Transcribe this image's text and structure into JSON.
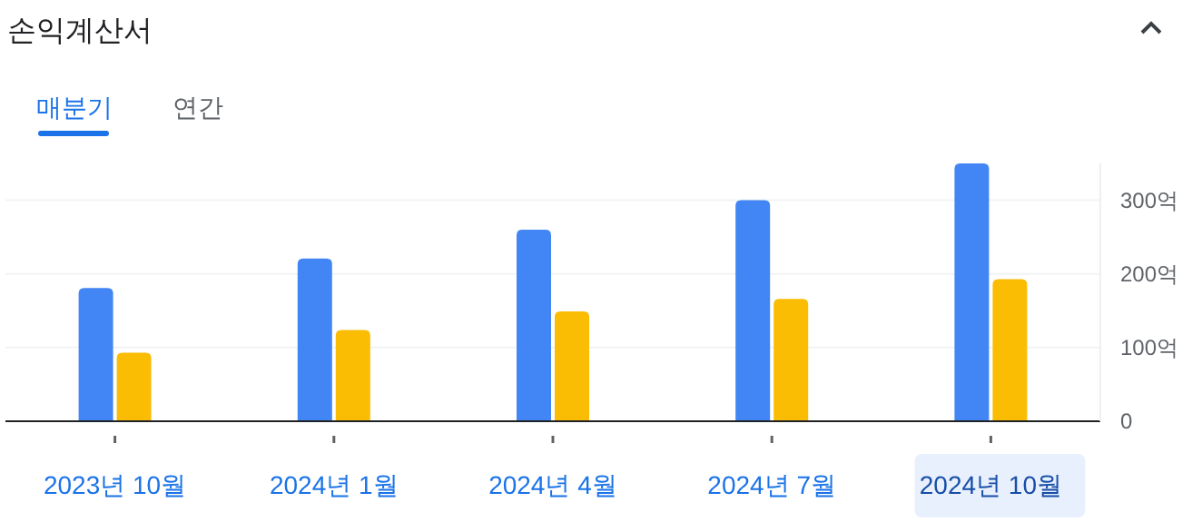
{
  "chart_data": {
    "type": "bar",
    "title": "손익계산서",
    "annotations": [
      "매분기",
      "연간"
    ],
    "categories": [
      "2023년 10월",
      "2024년 1월",
      "2024년 4월",
      "2024년 7월",
      "2024년 10월"
    ],
    "series": [
      {
        "color": "#4285f4",
        "values": [
          181,
          221,
          260,
          300,
          350
        ]
      },
      {
        "color": "#fbbc04",
        "values": [
          93,
          124,
          149,
          166,
          193
        ]
      }
    ],
    "yticks": [
      {
        "value": 0,
        "label": "0"
      },
      {
        "value": 100,
        "label": "100억"
      },
      {
        "value": 200,
        "label": "200억"
      },
      {
        "value": 300,
        "label": "300억"
      }
    ],
    "ylim": [
      0,
      350
    ],
    "grid": "y"
  }
}
